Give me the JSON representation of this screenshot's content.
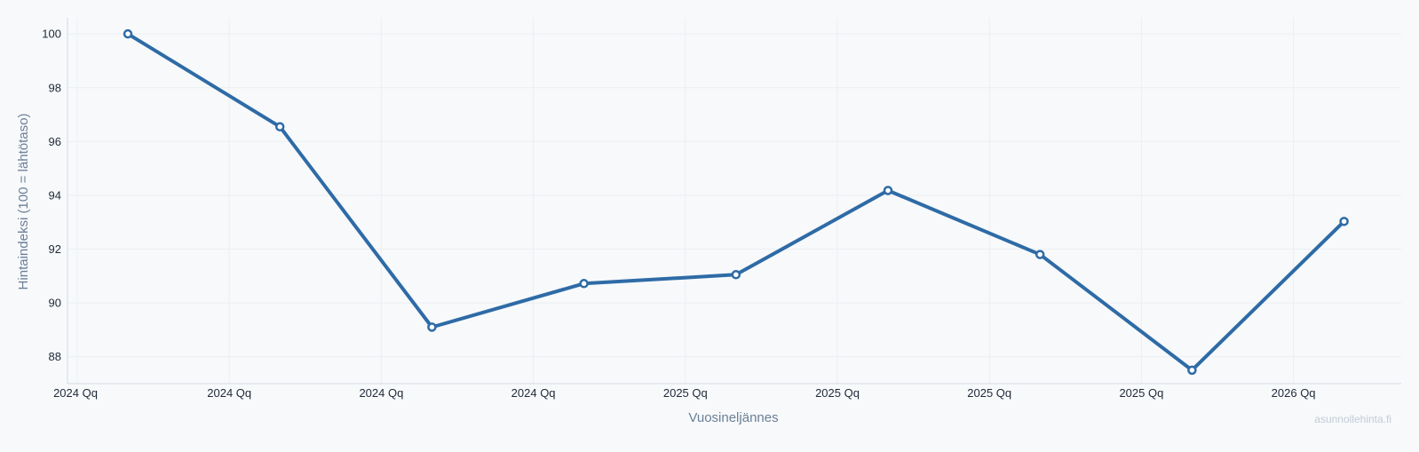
{
  "chart_data": {
    "type": "line",
    "xlabel": "Vuosineljännes",
    "ylabel": "Hintaindeksi (100 = lähtötaso)",
    "x_ticks": [
      "2024 Qq",
      "2024 Qq",
      "2024 Qq",
      "2024 Qq",
      "2025 Qq",
      "2025 Qq",
      "2025 Qq",
      "2025 Qq",
      "2026 Qq"
    ],
    "y_ticks": [
      88,
      90,
      92,
      94,
      96,
      98,
      100
    ],
    "ylim": [
      87.0,
      100.6
    ],
    "grid": true,
    "series": [
      {
        "values": [
          100.0,
          96.55,
          89.1,
          90.72,
          91.05,
          94.18,
          91.8,
          87.5,
          93.03
        ]
      }
    ]
  },
  "colors": {
    "line": "#2e6ba6",
    "marker_fill": "#ffffff",
    "grid": "#eceff3",
    "axis": "#d3dce6"
  },
  "watermark": "asunnollehinta.fi"
}
